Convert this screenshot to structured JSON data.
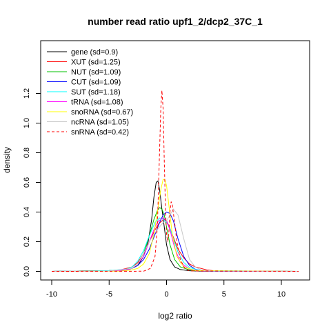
{
  "chart_data": {
    "type": "line",
    "title": "number read ratio upf1_2/dcp2_37C_1",
    "xlabel": "log2 ratio",
    "ylabel": "density",
    "xlim": [
      -10,
      12
    ],
    "ylim": [
      0,
      1.26
    ],
    "xticks": [
      -10,
      -5,
      0,
      5,
      10
    ],
    "xtick_labels": [
      "-10",
      "-5",
      "0",
      "5",
      "10"
    ],
    "yticks": [
      0,
      0.2,
      0.4,
      0.6,
      0.8,
      1.0,
      1.2
    ],
    "ytick_labels": [
      "0.0",
      "0.2",
      "0.4",
      "0.6",
      "0.8",
      "1.0",
      "1.2"
    ],
    "grid": false,
    "legend_position": "top-left",
    "series": [
      {
        "name": "gene (sd=0.9)",
        "color": "#000000",
        "dash": "solid",
        "x": [
          -10,
          -5,
          -3.5,
          -3,
          -2.5,
          -2,
          -1.6,
          -1.3,
          -1.1,
          -0.9,
          -0.75,
          -0.6,
          -0.4,
          -0.2,
          0,
          0.3,
          0.7,
          1.2,
          2,
          3,
          11.5
        ],
        "y": [
          0,
          0.005,
          0.01,
          0.02,
          0.04,
          0.1,
          0.2,
          0.35,
          0.5,
          0.6,
          0.61,
          0.55,
          0.42,
          0.3,
          0.18,
          0.08,
          0.03,
          0.012,
          0.004,
          0.001,
          0
        ]
      },
      {
        "name": "XUT (sd=1.25)",
        "color": "#ff0000",
        "dash": "solid",
        "x": [
          -10,
          -5,
          -4,
          -3,
          -2.5,
          -2,
          -1.5,
          -1,
          -0.7,
          -0.4,
          -0.2,
          0,
          0.2,
          0.5,
          1,
          1.5,
          2,
          2.5,
          3,
          3.5,
          4,
          5,
          11.5
        ],
        "y": [
          0,
          0.005,
          0.01,
          0.03,
          0.06,
          0.12,
          0.2,
          0.28,
          0.32,
          0.34,
          0.35,
          0.34,
          0.31,
          0.25,
          0.15,
          0.09,
          0.05,
          0.03,
          0.02,
          0.01,
          0.005,
          0.001,
          0
        ]
      },
      {
        "name": "NUT (sd=1.09)",
        "color": "#00c000",
        "dash": "solid",
        "x": [
          -10,
          -5,
          -3.5,
          -3,
          -2.5,
          -2,
          -1.5,
          -1.1,
          -0.8,
          -0.6,
          -0.4,
          -0.2,
          0,
          0.3,
          0.7,
          1.2,
          2,
          3,
          11.5
        ],
        "y": [
          0,
          0.005,
          0.01,
          0.02,
          0.05,
          0.12,
          0.24,
          0.35,
          0.41,
          0.43,
          0.42,
          0.38,
          0.3,
          0.18,
          0.08,
          0.03,
          0.01,
          0.003,
          0
        ]
      },
      {
        "name": "CUT (sd=1.09)",
        "color": "#0000ff",
        "dash": "solid",
        "x": [
          -10,
          -5,
          -3.5,
          -3,
          -2.5,
          -2,
          -1.5,
          -1,
          -0.6,
          -0.3,
          0,
          0.3,
          0.6,
          1,
          1.5,
          2,
          2.5,
          3,
          4,
          11.5
        ],
        "y": [
          0,
          0.003,
          0.01,
          0.02,
          0.04,
          0.08,
          0.15,
          0.25,
          0.33,
          0.38,
          0.4,
          0.39,
          0.34,
          0.22,
          0.1,
          0.04,
          0.015,
          0.005,
          0.001,
          0
        ]
      },
      {
        "name": "SUT (sd=1.18)",
        "color": "#00ffff",
        "dash": "solid",
        "x": [
          -10,
          -5,
          -3.5,
          -3,
          -2.5,
          -2,
          -1.5,
          -1,
          -0.6,
          -0.3,
          0,
          0.3,
          0.6,
          1,
          1.5,
          2,
          3,
          11.5
        ],
        "y": [
          0,
          0.005,
          0.015,
          0.03,
          0.07,
          0.14,
          0.24,
          0.33,
          0.36,
          0.35,
          0.33,
          0.29,
          0.22,
          0.13,
          0.06,
          0.025,
          0.005,
          0
        ]
      },
      {
        "name": "tRNA (sd=1.08)",
        "color": "#ff00ff",
        "dash": "solid",
        "x": [
          -10,
          -5,
          -3.5,
          -3,
          -2.5,
          -2,
          -1.5,
          -1,
          -0.7,
          -0.5,
          -0.3,
          0,
          0.3,
          0.7,
          1.2,
          2,
          3,
          11.5
        ],
        "y": [
          0,
          0.003,
          0.01,
          0.02,
          0.05,
          0.1,
          0.2,
          0.3,
          0.34,
          0.35,
          0.36,
          0.34,
          0.28,
          0.16,
          0.06,
          0.015,
          0.003,
          0
        ]
      },
      {
        "name": "snoRNA (sd=0.67)",
        "color": "#ffff00",
        "dash": "solid",
        "x": [
          -10,
          -4,
          -3,
          -2.5,
          -2,
          -1.5,
          -1.1,
          -0.8,
          -0.5,
          -0.3,
          -0.15,
          0,
          0.2,
          0.5,
          0.9,
          1.5,
          2.5,
          11.5
        ],
        "y": [
          0,
          0.002,
          0.01,
          0.02,
          0.05,
          0.12,
          0.25,
          0.4,
          0.55,
          0.62,
          0.62,
          0.58,
          0.45,
          0.25,
          0.1,
          0.03,
          0.005,
          0
        ]
      },
      {
        "name": "ncRNA (sd=1.05)",
        "color": "#c8c8c8",
        "dash": "solid",
        "x": [
          -10,
          -5,
          -3,
          -2.5,
          -2,
          -1.5,
          -1,
          -0.6,
          -0.3,
          0,
          0.3,
          0.6,
          1,
          1.5,
          2,
          2.5,
          3,
          4,
          11.5
        ],
        "y": [
          0,
          0.003,
          0.02,
          0.05,
          0.12,
          0.2,
          0.26,
          0.3,
          0.33,
          0.34,
          0.38,
          0.42,
          0.38,
          0.22,
          0.08,
          0.03,
          0.01,
          0.002,
          0
        ]
      },
      {
        "name": "snRNA (sd=0.42)",
        "color": "#ff0000",
        "dash": "dashed",
        "x": [
          -10,
          -2,
          -1.4,
          -1,
          -0.8,
          -0.65,
          -0.5,
          -0.4,
          -0.3,
          -0.2,
          -0.1,
          0,
          0.1,
          0.2,
          0.3,
          0.4,
          0.5,
          0.7,
          0.9,
          1.2,
          1.6,
          2,
          11.5
        ],
        "y": [
          0,
          0.001,
          0.02,
          0.1,
          0.3,
          0.7,
          1.1,
          1.22,
          1.1,
          0.75,
          0.45,
          0.25,
          0.2,
          0.26,
          0.4,
          0.47,
          0.45,
          0.33,
          0.2,
          0.08,
          0.02,
          0.003,
          0
        ]
      }
    ]
  }
}
